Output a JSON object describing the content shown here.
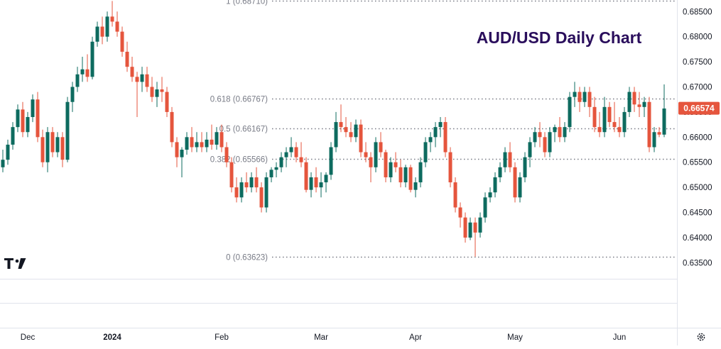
{
  "chart_data": {
    "type": "candlestick",
    "title": "AUD/USD Daily Chart",
    "title_color": "#2a0e5c",
    "up_color": "#0d6b5f",
    "down_color": "#e5553d",
    "ylim": [
      0.6318,
      0.6873
    ],
    "x_range": [
      0,
      131
    ],
    "y_ticks": [
      "0.68500",
      "0.68000",
      "0.67500",
      "0.67000",
      "0.66500",
      "0.66000",
      "0.65500",
      "0.65000",
      "0.64500",
      "0.64000",
      "0.63500"
    ],
    "x_ticks": [
      {
        "label": "Dec",
        "index": 5
      },
      {
        "label": "2024",
        "index": 22
      },
      {
        "label": "Feb",
        "index": 44
      },
      {
        "label": "Mar",
        "index": 64
      },
      {
        "label": "Apr",
        "index": 83
      },
      {
        "label": "May",
        "index": 103
      },
      {
        "label": "Jun",
        "index": 124
      }
    ],
    "fib_levels": [
      {
        "label": "1 (0.68710)",
        "value": 0.6871
      },
      {
        "label": "0.618 (0.66767)",
        "value": 0.66767
      },
      {
        "label": "0.5 (0.66167)",
        "value": 0.66167
      },
      {
        "label": "0.382 (0.65566)",
        "value": 0.65566
      },
      {
        "label": "0 (0.63623)",
        "value": 0.63623
      }
    ],
    "last_price": {
      "label": "0.66574",
      "value": 0.66574
    },
    "candles": [
      [
        0.654,
        0.6575,
        0.653,
        0.6555
      ],
      [
        0.6555,
        0.6595,
        0.6545,
        0.6585
      ],
      [
        0.6585,
        0.663,
        0.6575,
        0.662
      ],
      [
        0.662,
        0.6665,
        0.661,
        0.6655
      ],
      [
        0.6655,
        0.667,
        0.66,
        0.661
      ],
      [
        0.661,
        0.665,
        0.66,
        0.664
      ],
      [
        0.664,
        0.6685,
        0.663,
        0.6675
      ],
      [
        0.6675,
        0.669,
        0.659,
        0.66
      ],
      [
        0.66,
        0.6615,
        0.654,
        0.655
      ],
      [
        0.655,
        0.662,
        0.653,
        0.661
      ],
      [
        0.661,
        0.662,
        0.656,
        0.657
      ],
      [
        0.657,
        0.661,
        0.656,
        0.66
      ],
      [
        0.66,
        0.661,
        0.654,
        0.6555
      ],
      [
        0.6555,
        0.668,
        0.655,
        0.667
      ],
      [
        0.667,
        0.671,
        0.665,
        0.67
      ],
      [
        0.67,
        0.674,
        0.669,
        0.6725
      ],
      [
        0.6725,
        0.676,
        0.671,
        0.6735
      ],
      [
        0.6735,
        0.6765,
        0.671,
        0.672
      ],
      [
        0.672,
        0.68,
        0.6715,
        0.679
      ],
      [
        0.679,
        0.683,
        0.678,
        0.682
      ],
      [
        0.682,
        0.684,
        0.6785,
        0.68
      ],
      [
        0.68,
        0.685,
        0.679,
        0.684
      ],
      [
        0.684,
        0.6871,
        0.682,
        0.683
      ],
      [
        0.683,
        0.685,
        0.68,
        0.681
      ],
      [
        0.681,
        0.682,
        0.676,
        0.677
      ],
      [
        0.677,
        0.679,
        0.673,
        0.674
      ],
      [
        0.674,
        0.676,
        0.671,
        0.672
      ],
      [
        0.672,
        0.673,
        0.664,
        0.671
      ],
      [
        0.671,
        0.674,
        0.669,
        0.6725
      ],
      [
        0.6725,
        0.674,
        0.669,
        0.67
      ],
      [
        0.67,
        0.672,
        0.667,
        0.668
      ],
      [
        0.668,
        0.671,
        0.666,
        0.6695
      ],
      [
        0.6695,
        0.672,
        0.667,
        0.669
      ],
      [
        0.669,
        0.67,
        0.664,
        0.665
      ],
      [
        0.665,
        0.666,
        0.658,
        0.659
      ],
      [
        0.659,
        0.66,
        0.654,
        0.656
      ],
      [
        0.656,
        0.658,
        0.652,
        0.6575
      ],
      [
        0.6575,
        0.661,
        0.6565,
        0.66
      ],
      [
        0.66,
        0.662,
        0.657,
        0.658
      ],
      [
        0.658,
        0.661,
        0.657,
        0.659
      ],
      [
        0.659,
        0.661,
        0.657,
        0.658
      ],
      [
        0.658,
        0.661,
        0.657,
        0.6595
      ],
      [
        0.6595,
        0.6625,
        0.6575,
        0.6585
      ],
      [
        0.6585,
        0.662,
        0.6575,
        0.661
      ],
      [
        0.661,
        0.6625,
        0.657,
        0.658
      ],
      [
        0.658,
        0.659,
        0.654,
        0.655
      ],
      [
        0.655,
        0.656,
        0.649,
        0.65
      ],
      [
        0.65,
        0.652,
        0.647,
        0.648
      ],
      [
        0.648,
        0.652,
        0.647,
        0.651
      ],
      [
        0.651,
        0.653,
        0.649,
        0.65
      ],
      [
        0.65,
        0.653,
        0.649,
        0.652
      ],
      [
        0.652,
        0.654,
        0.649,
        0.65
      ],
      [
        0.65,
        0.651,
        0.645,
        0.646
      ],
      [
        0.646,
        0.653,
        0.645,
        0.652
      ],
      [
        0.652,
        0.654,
        0.651,
        0.6535
      ],
      [
        0.6535,
        0.655,
        0.652,
        0.654
      ],
      [
        0.654,
        0.657,
        0.653,
        0.656
      ],
      [
        0.656,
        0.658,
        0.654,
        0.657
      ],
      [
        0.657,
        0.66,
        0.656,
        0.658
      ],
      [
        0.658,
        0.659,
        0.655,
        0.656
      ],
      [
        0.656,
        0.659,
        0.654,
        0.655
      ],
      [
        0.655,
        0.656,
        0.649,
        0.6495
      ],
      [
        0.6495,
        0.653,
        0.648,
        0.652
      ],
      [
        0.652,
        0.654,
        0.649,
        0.65
      ],
      [
        0.65,
        0.653,
        0.648,
        0.651
      ],
      [
        0.651,
        0.653,
        0.649,
        0.6525
      ],
      [
        0.6525,
        0.659,
        0.6515,
        0.658
      ],
      [
        0.658,
        0.665,
        0.657,
        0.663
      ],
      [
        0.663,
        0.6665,
        0.661,
        0.662
      ],
      [
        0.662,
        0.664,
        0.66,
        0.661
      ],
      [
        0.661,
        0.663,
        0.659,
        0.66
      ],
      [
        0.66,
        0.6635,
        0.659,
        0.6625
      ],
      [
        0.6625,
        0.6635,
        0.656,
        0.657
      ],
      [
        0.657,
        0.659,
        0.655,
        0.656
      ],
      [
        0.656,
        0.657,
        0.651,
        0.654
      ],
      [
        0.654,
        0.66,
        0.653,
        0.659
      ],
      [
        0.659,
        0.661,
        0.656,
        0.657
      ],
      [
        0.657,
        0.6575,
        0.651,
        0.652
      ],
      [
        0.652,
        0.656,
        0.651,
        0.655
      ],
      [
        0.655,
        0.657,
        0.653,
        0.654
      ],
      [
        0.654,
        0.6555,
        0.65,
        0.651
      ],
      [
        0.651,
        0.6545,
        0.65,
        0.654
      ],
      [
        0.654,
        0.6545,
        0.649,
        0.6495
      ],
      [
        0.6495,
        0.652,
        0.648,
        0.651
      ],
      [
        0.651,
        0.656,
        0.65,
        0.655
      ],
      [
        0.655,
        0.66,
        0.654,
        0.659
      ],
      [
        0.659,
        0.661,
        0.657,
        0.66
      ],
      [
        0.66,
        0.663,
        0.658,
        0.662
      ],
      [
        0.662,
        0.664,
        0.66,
        0.663
      ],
      [
        0.663,
        0.664,
        0.656,
        0.657
      ],
      [
        0.657,
        0.658,
        0.65,
        0.651
      ],
      [
        0.651,
        0.652,
        0.645,
        0.646
      ],
      [
        0.646,
        0.647,
        0.642,
        0.644
      ],
      [
        0.644,
        0.645,
        0.639,
        0.64
      ],
      [
        0.64,
        0.644,
        0.6395,
        0.643
      ],
      [
        0.643,
        0.644,
        0.6362,
        0.641
      ],
      [
        0.641,
        0.645,
        0.64,
        0.644
      ],
      [
        0.644,
        0.649,
        0.643,
        0.648
      ],
      [
        0.648,
        0.65,
        0.647,
        0.649
      ],
      [
        0.649,
        0.653,
        0.648,
        0.652
      ],
      [
        0.652,
        0.655,
        0.651,
        0.654
      ],
      [
        0.654,
        0.658,
        0.653,
        0.657
      ],
      [
        0.657,
        0.659,
        0.653,
        0.654
      ],
      [
        0.654,
        0.655,
        0.647,
        0.648
      ],
      [
        0.648,
        0.653,
        0.647,
        0.652
      ],
      [
        0.652,
        0.657,
        0.651,
        0.656
      ],
      [
        0.656,
        0.66,
        0.654,
        0.659
      ],
      [
        0.659,
        0.662,
        0.658,
        0.661
      ],
      [
        0.661,
        0.663,
        0.658,
        0.66
      ],
      [
        0.66,
        0.661,
        0.656,
        0.657
      ],
      [
        0.657,
        0.662,
        0.656,
        0.661
      ],
      [
        0.661,
        0.6625,
        0.659,
        0.662
      ],
      [
        0.662,
        0.664,
        0.659,
        0.66
      ],
      [
        0.66,
        0.663,
        0.659,
        0.662
      ],
      [
        0.662,
        0.669,
        0.661,
        0.668
      ],
      [
        0.668,
        0.671,
        0.666,
        0.669
      ],
      [
        0.669,
        0.67,
        0.665,
        0.667
      ],
      [
        0.667,
        0.67,
        0.666,
        0.669
      ],
      [
        0.669,
        0.67,
        0.664,
        0.666
      ],
      [
        0.666,
        0.668,
        0.661,
        0.662
      ],
      [
        0.662,
        0.665,
        0.66,
        0.661
      ],
      [
        0.661,
        0.668,
        0.66,
        0.666
      ],
      [
        0.666,
        0.667,
        0.662,
        0.663
      ],
      [
        0.663,
        0.667,
        0.661,
        0.662
      ],
      [
        0.662,
        0.664,
        0.66,
        0.661
      ],
      [
        0.661,
        0.666,
        0.66,
        0.665
      ],
      [
        0.665,
        0.67,
        0.664,
        0.669
      ],
      [
        0.669,
        0.67,
        0.665,
        0.6665
      ],
      [
        0.6665,
        0.669,
        0.664,
        0.666
      ],
      [
        0.666,
        0.668,
        0.664,
        0.667
      ],
      [
        0.667,
        0.668,
        0.657,
        0.658
      ],
      [
        0.658,
        0.662,
        0.657,
        0.661
      ],
      [
        0.661,
        0.662,
        0.66,
        0.6605
      ],
      [
        0.6605,
        0.6705,
        0.66,
        0.6657
      ]
    ]
  }
}
